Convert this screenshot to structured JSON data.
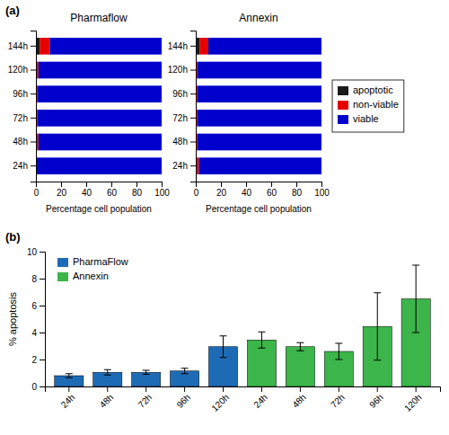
{
  "chart_data": [
    {
      "type": "bar",
      "orientation": "horizontal",
      "stacked": true,
      "title": "Pharmaflow",
      "annotations": [
        "(a)"
      ],
      "categories": [
        "24h",
        "48h",
        "72h",
        "96h",
        "120h",
        "144h"
      ],
      "series": [
        {
          "name": "apoptotic",
          "color": "#1a1a1a",
          "values": [
            0,
            0,
            0,
            0,
            0,
            3
          ]
        },
        {
          "name": "non-viable",
          "color": "#e60000",
          "values": [
            0.5,
            2,
            1.5,
            1.5,
            2,
            8
          ]
        },
        {
          "name": "viable",
          "color": "#0000cc",
          "values": [
            99.5,
            98,
            98.5,
            98.5,
            98,
            89
          ]
        }
      ],
      "xlabel": "Percentage cell population",
      "xlim": [
        0,
        100
      ],
      "xticks": [
        0,
        20,
        40,
        60,
        80,
        100
      ]
    },
    {
      "type": "bar",
      "orientation": "horizontal",
      "stacked": true,
      "title": "Annexin",
      "categories": [
        "24h",
        "48h",
        "72h",
        "96h",
        "120h",
        "144h"
      ],
      "series": [
        {
          "name": "apoptotic",
          "color": "#1a1a1a",
          "values": [
            0,
            0,
            0,
            0,
            0,
            3
          ]
        },
        {
          "name": "non-viable",
          "color": "#e60000",
          "values": [
            2.5,
            1.5,
            1.5,
            1.5,
            1.5,
            7
          ]
        },
        {
          "name": "viable",
          "color": "#0000cc",
          "values": [
            97.5,
            98.5,
            98.5,
            98.5,
            98.5,
            90
          ]
        }
      ],
      "xlabel": "Percentage cell population",
      "xlim": [
        0,
        100
      ],
      "xticks": [
        0,
        20,
        40,
        60,
        80,
        100
      ],
      "legend": "right"
    },
    {
      "type": "bar",
      "annotations": [
        "(b)"
      ],
      "categories": [
        "24h",
        "48h",
        "72h",
        "96h",
        "120h",
        "24h",
        "48h",
        "72h",
        "96h",
        "120h"
      ],
      "series": [
        {
          "name": "PharmaFlow",
          "color": "#1e6bb5",
          "values": [
            0.8,
            1.05,
            1.05,
            1.15,
            2.95,
            null,
            null,
            null,
            null,
            null
          ],
          "errors": [
            0.15,
            0.2,
            0.15,
            0.2,
            0.8,
            null,
            null,
            null,
            null,
            null
          ]
        },
        {
          "name": "Annexin",
          "color": "#3cb54a",
          "values": [
            null,
            null,
            null,
            null,
            null,
            3.45,
            2.95,
            2.6,
            4.45,
            6.5
          ],
          "errors": [
            null,
            null,
            null,
            null,
            null,
            0.6,
            0.3,
            0.6,
            2.5,
            2.5
          ]
        }
      ],
      "ylabel": "% apoptosis",
      "ylim": [
        0,
        10
      ],
      "yticks": [
        0,
        2,
        4,
        6,
        8,
        10
      ],
      "legend": "upper left"
    }
  ]
}
